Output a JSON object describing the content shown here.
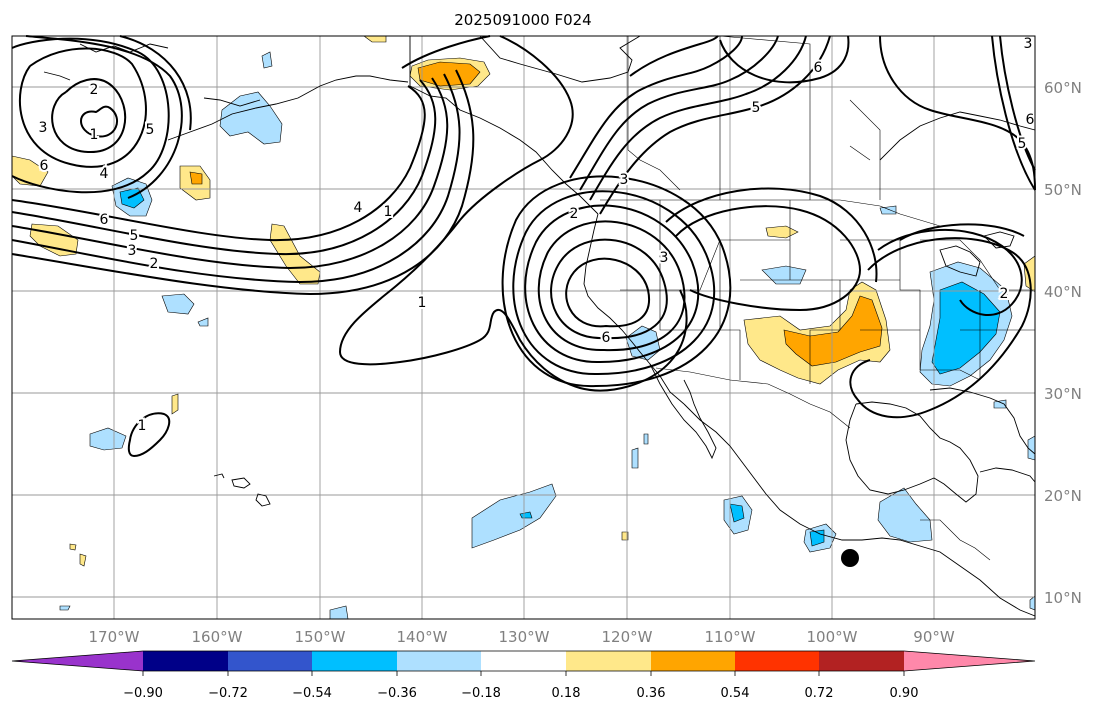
{
  "title": "2025091000 F024",
  "lat_labels": [
    "60°N",
    "50°N",
    "40°N",
    "30°N",
    "20°N",
    "10°N"
  ],
  "lon_labels": [
    "170°W",
    "160°W",
    "150°W",
    "140°W",
    "130°W",
    "120°W",
    "110°W",
    "100°W",
    "90°W"
  ],
  "colorbar": {
    "ticks": [
      "−0.90",
      "−0.72",
      "−0.54",
      "−0.36",
      "−0.18",
      "0.18",
      "0.36",
      "0.54",
      "0.72",
      "0.90"
    ],
    "colors": [
      "#9933cc",
      "#000088",
      "#3355cc",
      "#00bfff",
      "#aee0ff",
      "#ffffff",
      "#ffe88a",
      "#ffa500",
      "#ff3300",
      "#b22222",
      "#ff88aa"
    ]
  },
  "contour_labels": [
    "1",
    "2",
    "3",
    "4",
    "5",
    "6"
  ],
  "anomaly_colors": {
    "light_blue": "#aee0ff",
    "blue": "#00bfff",
    "yellow": "#ffe88a",
    "orange": "#ffa500"
  },
  "marker_color": "#000000"
}
